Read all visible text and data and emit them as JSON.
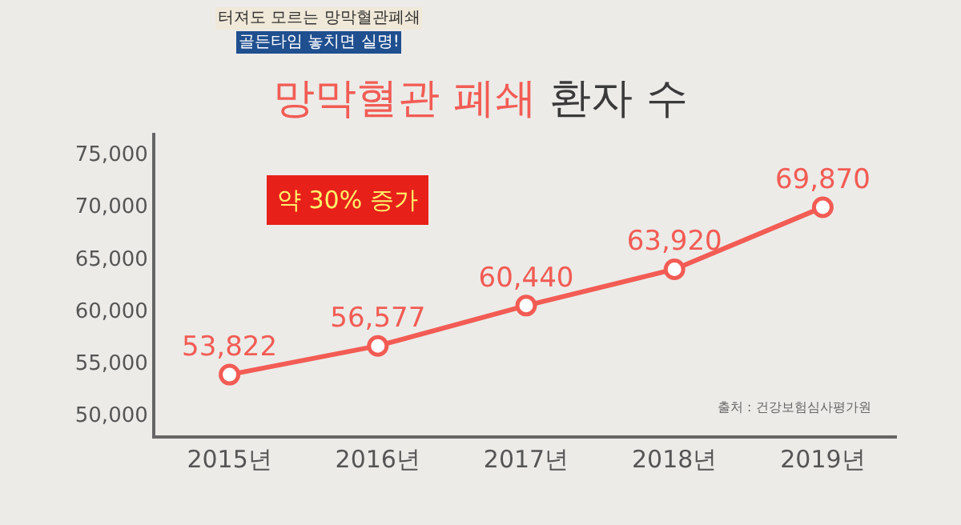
{
  "chart_data": {
    "type": "line",
    "title": "망막혈관 폐쇄 환자 수",
    "categories": [
      "2015년",
      "2016년",
      "2017년",
      "2018년",
      "2019년"
    ],
    "series": [
      {
        "color": "#f25c54",
        "values": [
          53822,
          56577,
          60440,
          63920,
          69870
        ],
        "value_labels": [
          "53,822",
          "56,577",
          "60,440",
          "63,920",
          "69,870"
        ]
      }
    ],
    "ylim": [
      48000,
      77000
    ],
    "yticks": [
      {
        "value": 50000,
        "label": "50,000"
      },
      {
        "value": 55000,
        "label": "55,000"
      },
      {
        "value": 60000,
        "label": "60,000"
      },
      {
        "value": 65000,
        "label": "65,000"
      },
      {
        "value": 70000,
        "label": "70,000"
      },
      {
        "value": 75000,
        "label": "75,000"
      }
    ],
    "grid": false,
    "marker": "circle",
    "line_style": "solid",
    "annotations": [
      "터져도 모르는 망막혈관폐쇄",
      "골든타임 놓치면 실명!",
      "약 30% 증가",
      "출처 : 건강보험심사평가원"
    ]
  }
}
